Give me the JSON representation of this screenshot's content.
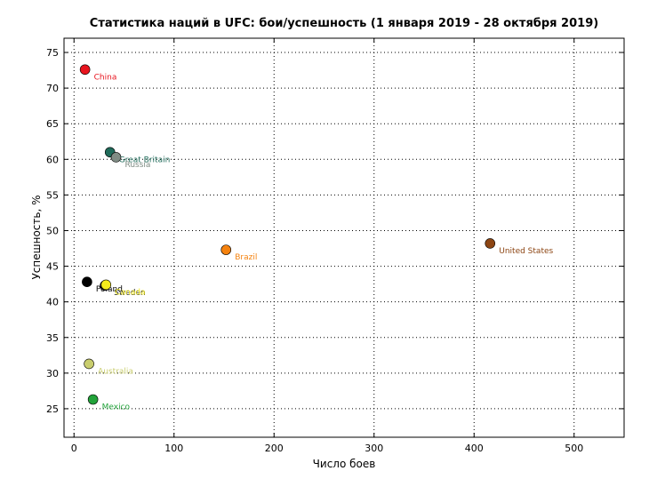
{
  "chart_data": {
    "type": "scatter",
    "title": "Статистика наций в UFC: бои/успешность (1 января 2019 - 28 октября 2019)",
    "xlabel": "Число боев",
    "ylabel": "Успешность, %",
    "xlim": [
      -10,
      550
    ],
    "ylim": [
      21,
      77
    ],
    "xticks": [
      0,
      100,
      200,
      300,
      400,
      500
    ],
    "yticks": [
      25,
      30,
      35,
      40,
      45,
      50,
      55,
      60,
      65,
      70,
      75
    ],
    "xtick_labels": [
      "0",
      "100",
      "200",
      "300",
      "400",
      "500"
    ],
    "ytick_labels": [
      "25",
      "30",
      "35",
      "40",
      "45",
      "50",
      "55",
      "60",
      "65",
      "70",
      "75"
    ],
    "grid": true,
    "points": [
      {
        "label": "China",
        "x": 11,
        "y": 72.6,
        "color": "#e8141e"
      },
      {
        "label": "Great Britain",
        "x": 36,
        "y": 61.0,
        "color": "#1f6b5a"
      },
      {
        "label": "Russia",
        "x": 42,
        "y": 60.3,
        "color": "#7f8c84"
      },
      {
        "label": "Brazil",
        "x": 152,
        "y": 47.3,
        "color": "#f5820e"
      },
      {
        "label": "United States",
        "x": 416,
        "y": 48.2,
        "color": "#8c4513"
      },
      {
        "label": "Sweden",
        "x": 31,
        "y": 42.3,
        "color": "#1a1a1a"
      },
      {
        "label": "Poland",
        "x": 13,
        "y": 42.8,
        "color": "#000000"
      },
      {
        "label": "Canada",
        "x": 32,
        "y": 42.4,
        "color": "#f4ec1c"
      },
      {
        "label": "Australia",
        "x": 15,
        "y": 31.3,
        "color": "#c9cd6e"
      },
      {
        "label": "Mexico",
        "x": 19,
        "y": 26.3,
        "color": "#22a33a"
      }
    ]
  }
}
